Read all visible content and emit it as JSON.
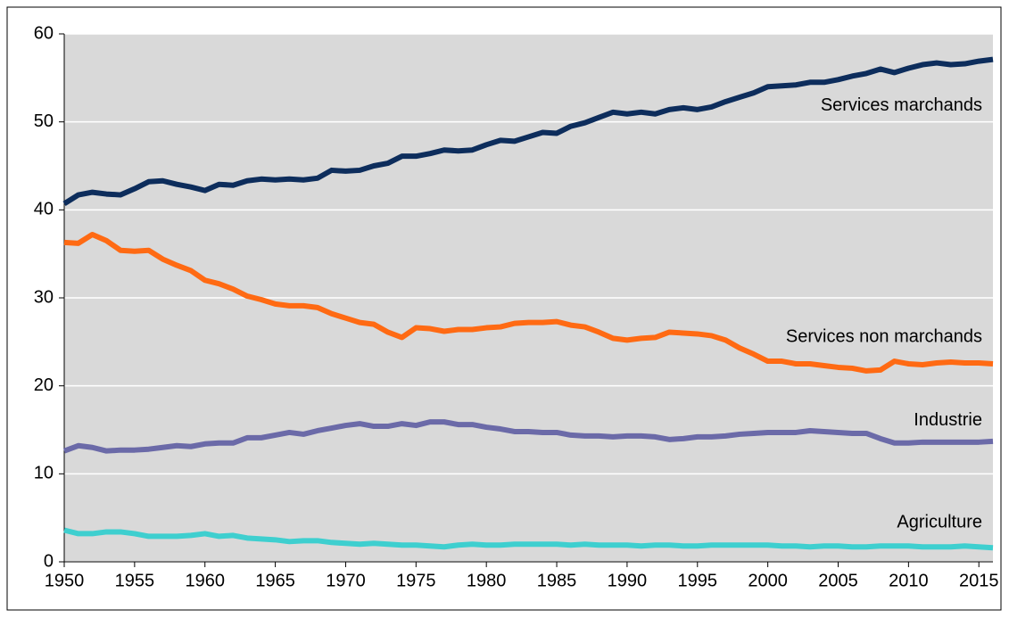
{
  "chart_data": {
    "type": "line",
    "x": [
      1950,
      1951,
      1952,
      1953,
      1954,
      1955,
      1956,
      1957,
      1958,
      1959,
      1960,
      1961,
      1962,
      1963,
      1964,
      1965,
      1966,
      1967,
      1968,
      1969,
      1970,
      1971,
      1972,
      1973,
      1974,
      1975,
      1976,
      1977,
      1978,
      1979,
      1980,
      1981,
      1982,
      1983,
      1984,
      1985,
      1986,
      1987,
      1988,
      1989,
      1990,
      1991,
      1992,
      1993,
      1994,
      1995,
      1996,
      1997,
      1998,
      1999,
      2000,
      2001,
      2002,
      2003,
      2004,
      2005,
      2006,
      2007,
      2008,
      2009,
      2010,
      2011,
      2012,
      2013,
      2014,
      2015,
      2016
    ],
    "series": [
      {
        "name": "Services marchands",
        "color": "#0d2d5c",
        "values": [
          40.7,
          41.7,
          42.0,
          41.8,
          41.7,
          42.4,
          43.2,
          43.3,
          42.9,
          42.6,
          42.2,
          42.9,
          42.8,
          43.3,
          43.5,
          43.4,
          43.5,
          43.4,
          43.6,
          44.5,
          44.4,
          44.5,
          45.0,
          45.3,
          46.1,
          46.1,
          46.4,
          46.8,
          46.7,
          46.8,
          47.4,
          47.9,
          47.8,
          48.3,
          48.8,
          48.7,
          49.5,
          49.9,
          50.5,
          51.1,
          50.9,
          51.1,
          50.9,
          51.4,
          51.6,
          51.4,
          51.7,
          52.3,
          52.8,
          53.3,
          54.0,
          54.1,
          54.2,
          54.5,
          54.5,
          54.8,
          55.2,
          55.5,
          56.0,
          55.6,
          56.1,
          56.5,
          56.7,
          56.5,
          56.6,
          56.9,
          57.1
        ]
      },
      {
        "name": "Services non marchands",
        "color": "#ff6a13",
        "values": [
          36.3,
          36.2,
          37.2,
          36.5,
          35.4,
          35.3,
          35.4,
          34.4,
          33.7,
          33.1,
          32.0,
          31.6,
          31.0,
          30.2,
          29.8,
          29.3,
          29.1,
          29.1,
          28.9,
          28.2,
          27.7,
          27.2,
          27.0,
          26.1,
          25.5,
          26.6,
          26.5,
          26.2,
          26.4,
          26.4,
          26.6,
          26.7,
          27.1,
          27.2,
          27.2,
          27.3,
          26.9,
          26.7,
          26.1,
          25.4,
          25.2,
          25.4,
          25.5,
          26.1,
          26.0,
          25.9,
          25.7,
          25.2,
          24.3,
          23.6,
          22.8,
          22.8,
          22.5,
          22.5,
          22.3,
          22.1,
          22.0,
          21.7,
          21.8,
          22.8,
          22.5,
          22.4,
          22.6,
          22.7,
          22.6,
          22.6,
          22.5
        ]
      },
      {
        "name": "Industrie",
        "color": "#6b6aa8",
        "values": [
          12.6,
          13.2,
          13.0,
          12.6,
          12.7,
          12.7,
          12.8,
          13.0,
          13.2,
          13.1,
          13.4,
          13.5,
          13.5,
          14.1,
          14.1,
          14.4,
          14.7,
          14.5,
          14.9,
          15.2,
          15.5,
          15.7,
          15.4,
          15.4,
          15.7,
          15.5,
          15.9,
          15.9,
          15.6,
          15.6,
          15.3,
          15.1,
          14.8,
          14.8,
          14.7,
          14.7,
          14.4,
          14.3,
          14.3,
          14.2,
          14.3,
          14.3,
          14.2,
          13.9,
          14.0,
          14.2,
          14.2,
          14.3,
          14.5,
          14.6,
          14.7,
          14.7,
          14.7,
          14.9,
          14.8,
          14.7,
          14.6,
          14.6,
          14.0,
          13.5,
          13.5,
          13.6,
          13.6,
          13.6,
          13.6,
          13.6,
          13.7
        ]
      },
      {
        "name": "Agriculture",
        "color": "#3ecfcf",
        "values": [
          3.6,
          3.2,
          3.2,
          3.4,
          3.4,
          3.2,
          2.9,
          2.9,
          2.9,
          3.0,
          3.2,
          2.9,
          3.0,
          2.7,
          2.6,
          2.5,
          2.3,
          2.4,
          2.4,
          2.2,
          2.1,
          2.0,
          2.1,
          2.0,
          1.9,
          1.9,
          1.8,
          1.7,
          1.9,
          2.0,
          1.9,
          1.9,
          2.0,
          2.0,
          2.0,
          2.0,
          1.9,
          2.0,
          1.9,
          1.9,
          1.9,
          1.8,
          1.9,
          1.9,
          1.8,
          1.8,
          1.9,
          1.9,
          1.9,
          1.9,
          1.9,
          1.8,
          1.8,
          1.7,
          1.8,
          1.8,
          1.7,
          1.7,
          1.8,
          1.8,
          1.8,
          1.7,
          1.7,
          1.7,
          1.8,
          1.7,
          1.6
        ]
      }
    ],
    "xlim": [
      1950,
      2016
    ],
    "xticks": [
      1950,
      1955,
      1960,
      1965,
      1970,
      1975,
      1980,
      1985,
      1990,
      1995,
      2000,
      2005,
      2010,
      2015
    ],
    "ylim": [
      0,
      60
    ],
    "yticks": [
      0,
      10,
      20,
      30,
      40,
      50,
      60
    ],
    "grid": true
  }
}
